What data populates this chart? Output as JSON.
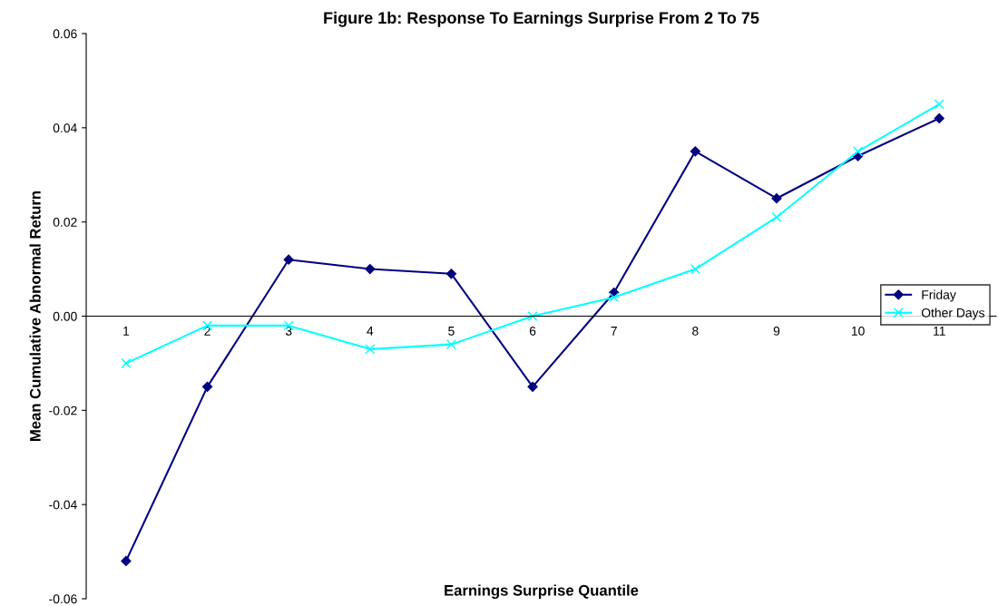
{
  "chart_data": {
    "type": "line",
    "title": "Figure 1b: Response To Earnings Surprise From 2 To 75",
    "xlabel": "Earnings Surprise Quantile",
    "ylabel": "Mean Cumulative Abnormal Return",
    "categories": [
      "1",
      "2",
      "3",
      "4",
      "5",
      "6",
      "7",
      "8",
      "9",
      "10",
      "11"
    ],
    "series": [
      {
        "name": "Friday",
        "color": "#000080",
        "marker": "diamond",
        "values": [
          -0.052,
          -0.015,
          0.012,
          0.01,
          0.009,
          -0.015,
          0.005,
          0.035,
          0.025,
          0.034,
          0.042
        ]
      },
      {
        "name": "Other Days",
        "color": "#00ffff",
        "marker": "cross",
        "values": [
          -0.01,
          -0.002,
          -0.002,
          -0.007,
          -0.006,
          0.0,
          0.004,
          0.01,
          0.021,
          0.035,
          0.045
        ]
      }
    ],
    "ylim": [
      -0.06,
      0.06
    ],
    "yticks": [
      -0.06,
      -0.04,
      -0.02,
      {
        "value": 0,
        "label": "0.00"
      },
      0.02,
      0.04,
      0.06
    ],
    "legend": "right",
    "grid": false
  }
}
